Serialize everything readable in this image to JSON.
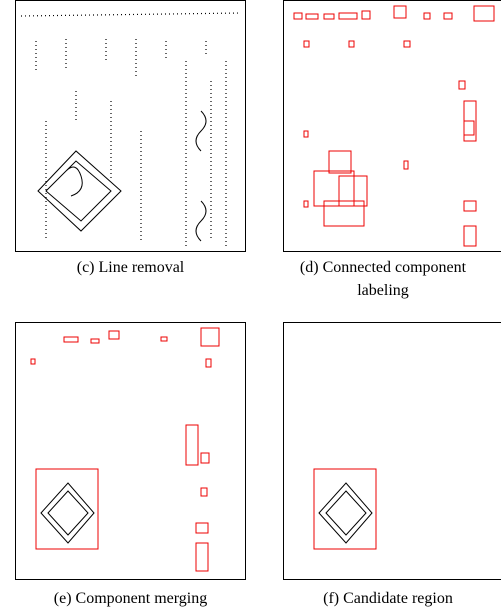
{
  "panels": [
    {
      "caption": "(c) Line removal"
    },
    {
      "caption": "(d) Connected component labeling"
    },
    {
      "caption": "(e) Component merging"
    },
    {
      "caption": "(f) Candidate region"
    }
  ]
}
